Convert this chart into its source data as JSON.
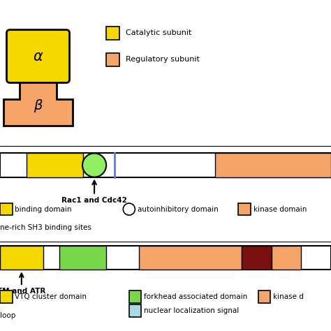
{
  "bg_color": "#ffffff",
  "catalytic_color": "#f5d800",
  "regulatory_color": "#f5a46a",
  "kinase_color": "#f5a46a",
  "autoinhibitory_color": "#90ee60",
  "blue_line_color": "#5b7be8",
  "dark_red_color": "#7b1010",
  "green_domain_color": "#78d84a",
  "light_blue_color": "#add8e6",
  "legend1_catalytic": "Catalytic subunit",
  "legend1_regulatory": "Regulatory subunit",
  "bar1_binding": "binding domain",
  "bar1_autoinhibitory": "autoinhibitory domain",
  "bar1_kinase": "kinase domain",
  "bar1_sh3": "ne-rich SH3 binding sites",
  "bar1_rac1": "Rac1 and Cdc42",
  "bar2_cluster": "VTQ cluster domain",
  "bar2_loop": "loop",
  "bar2_forkhead": "forkhead associated domain",
  "bar2_nuclear": "nuclear localization signal",
  "bar2_kinase": "kinase d",
  "bar2_atm": "TM and ATR"
}
